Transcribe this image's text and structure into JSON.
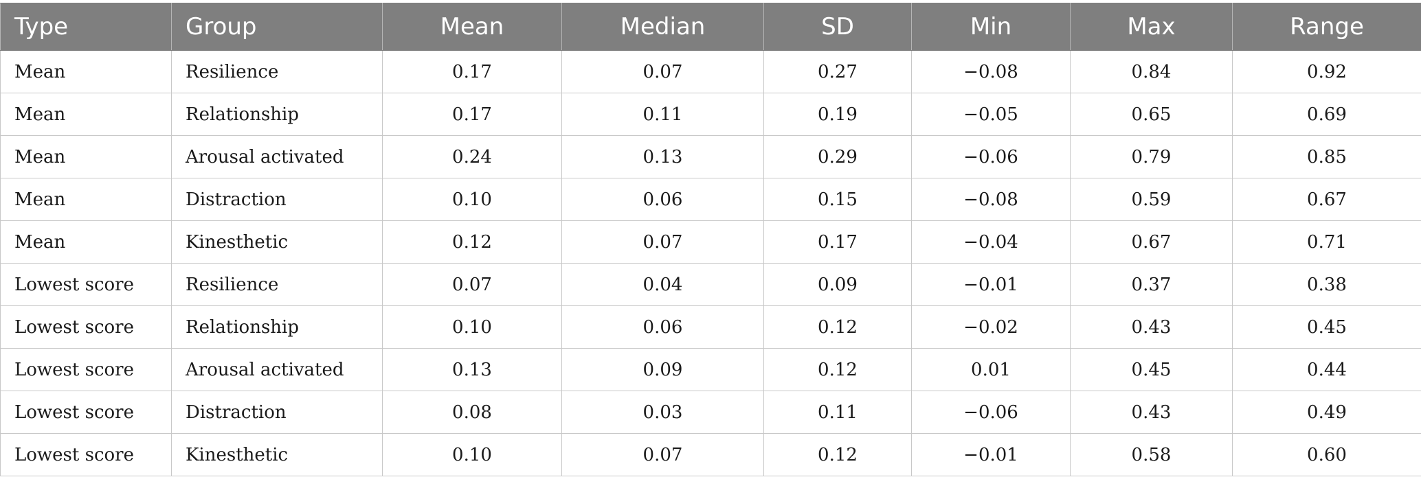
{
  "table": {
    "headers": [
      "Type",
      "Group",
      "Mean",
      "Median",
      "SD",
      "Min",
      "Max",
      "Range"
    ],
    "rows": [
      [
        "Mean",
        "Resilience",
        "0.17",
        "0.07",
        "0.27",
        "−0.08",
        "0.84",
        "0.92"
      ],
      [
        "Mean",
        "Relationship",
        "0.17",
        "0.11",
        "0.19",
        "−0.05",
        "0.65",
        "0.69"
      ],
      [
        "Mean",
        "Arousal activated",
        "0.24",
        "0.13",
        "0.29",
        "−0.06",
        "0.79",
        "0.85"
      ],
      [
        "Mean",
        "Distraction",
        "0.10",
        "0.06",
        "0.15",
        "−0.08",
        "0.59",
        "0.67"
      ],
      [
        "Mean",
        "Kinesthetic",
        "0.12",
        "0.07",
        "0.17",
        "−0.04",
        "0.67",
        "0.71"
      ],
      [
        "Lowest score",
        "Resilience",
        "0.07",
        "0.04",
        "0.09",
        "−0.01",
        "0.37",
        "0.38"
      ],
      [
        "Lowest score",
        "Relationship",
        "0.10",
        "0.06",
        "0.12",
        "−0.02",
        "0.43",
        "0.45"
      ],
      [
        "Lowest score",
        "Arousal activated",
        "0.13",
        "0.09",
        "0.12",
        "0.01",
        "0.45",
        "0.44"
      ],
      [
        "Lowest score",
        "Distraction",
        "0.08",
        "0.03",
        "0.11",
        "−0.06",
        "0.43",
        "0.49"
      ],
      [
        "Lowest score",
        "Kinesthetic",
        "0.10",
        "0.07",
        "0.12",
        "−0.01",
        "0.58",
        "0.60"
      ]
    ]
  },
  "colors": {
    "header_background": "#7f7f7f",
    "header_text": "#ffffff",
    "grid_lines": "#c8c8c8"
  }
}
